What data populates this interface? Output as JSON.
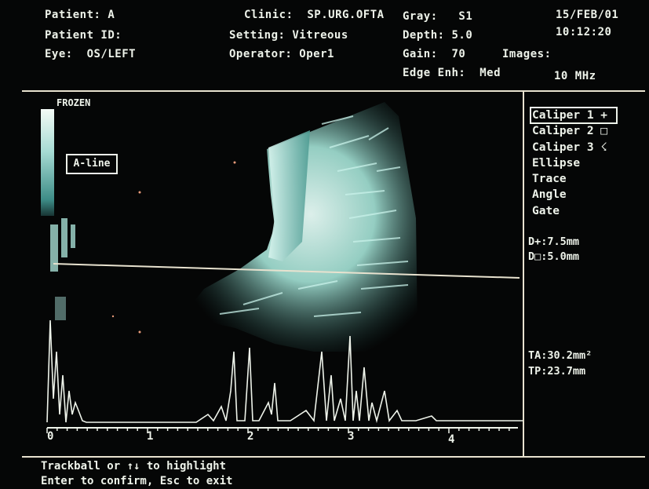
{
  "header": {
    "patient": "Patient: A",
    "patient_id": "Patient ID:",
    "eye": "Eye:  OS/LEFT",
    "clinic": "Clinic:  SP.URG.OFTA",
    "setting": "Setting: Vitreous",
    "operator": "Operator: Oper1",
    "gray": "Gray:   S1",
    "depth": "Depth: 5.0",
    "gain": "Gain:  70",
    "images": "Images:",
    "edge": "Edge Enh:  Med",
    "date": "15/FEB/01",
    "time": "10:12:20",
    "freq": "10 MHz"
  },
  "scan": {
    "frozen_label": "FROZEN",
    "aline_label": "A-line",
    "axis_ticks": [
      "0",
      "1",
      "2",
      "3",
      "4"
    ]
  },
  "menu": {
    "items": [
      {
        "label": "Caliper 1 +",
        "selected": true
      },
      {
        "label": "Caliper 2 □",
        "selected": false
      },
      {
        "label": "Caliper 3 ☇",
        "selected": false
      },
      {
        "label": "Ellipse",
        "selected": false
      },
      {
        "label": "Trace",
        "selected": false
      },
      {
        "label": "Angle",
        "selected": false
      },
      {
        "label": "Gate",
        "selected": false
      }
    ]
  },
  "measurements": {
    "d_plus": "D+:7.5mm",
    "d_square": "D□:5.0mm",
    "ta": "TA:30.2mm²",
    "tp": "TP:23.7mm"
  },
  "footer": {
    "line1": "Trackball or ↑↓ to highlight",
    "line2": "Enter to confirm, Esc to exit"
  },
  "colors": {
    "text": "#eef3ea",
    "lines": "#e8e2cf",
    "echo": "#b9f0e6",
    "background": "#050606"
  }
}
